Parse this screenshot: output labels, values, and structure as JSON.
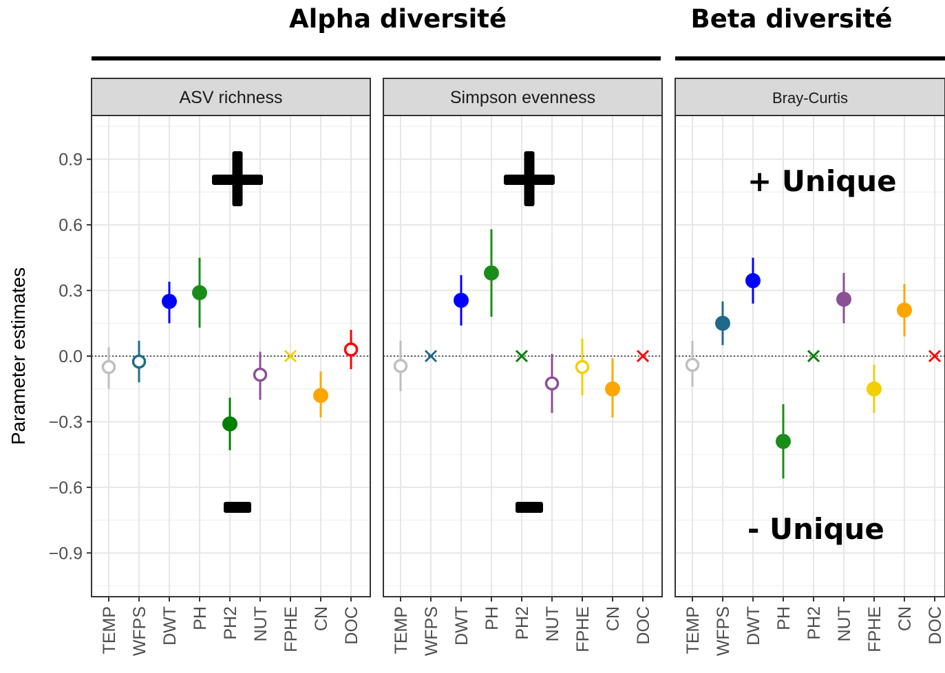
{
  "chart_data": {
    "type": "scatter",
    "ylabel": "Parameter estimates",
    "ylim": [
      -1.1,
      1.1
    ],
    "yticks": [
      "0.9",
      "0.6",
      "0.3",
      "0.0",
      "−0.3",
      "−0.6",
      "−0.9"
    ],
    "categories": [
      "TEMP",
      "WFPS",
      "DWT",
      "PH",
      "PH2",
      "NUT",
      "FPHE",
      "CN",
      "DOC"
    ],
    "category_colors": {
      "TEMP": "#bfbfbf",
      "WFPS": "#1f6a8a",
      "DWT": "#0000ff",
      "PH": "#1a8c1a",
      "PH2": "#008000",
      "NUT": "#8b4f96",
      "FPHE": "#f2d000",
      "CN": "#ffa500",
      "DOC": "#ff0000"
    },
    "group_titles": [
      {
        "label": "Alpha diversité",
        "panels": [
          0,
          1
        ]
      },
      {
        "label": "Beta diversité",
        "panels": [
          2
        ]
      }
    ],
    "panels": [
      {
        "strip": "ASV richness",
        "plus_symbol": "+",
        "minus_symbol": "−",
        "points": [
          {
            "cat": "TEMP",
            "y": -0.05,
            "lo": -0.15,
            "hi": 0.04,
            "marker": "open"
          },
          {
            "cat": "WFPS",
            "y": -0.025,
            "lo": -0.12,
            "hi": 0.07,
            "marker": "open"
          },
          {
            "cat": "DWT",
            "y": 0.25,
            "lo": 0.15,
            "hi": 0.34,
            "marker": "filled"
          },
          {
            "cat": "PH",
            "y": 0.29,
            "lo": 0.13,
            "hi": 0.45,
            "marker": "filled"
          },
          {
            "cat": "PH2",
            "y": -0.31,
            "lo": -0.43,
            "hi": -0.19,
            "marker": "filled"
          },
          {
            "cat": "NUT",
            "y": -0.085,
            "lo": -0.2,
            "hi": 0.02,
            "marker": "open"
          },
          {
            "cat": "FPHE",
            "y": 0.0,
            "marker": "cross"
          },
          {
            "cat": "CN",
            "y": -0.18,
            "lo": -0.28,
            "hi": -0.07,
            "marker": "filled"
          },
          {
            "cat": "DOC",
            "y": 0.03,
            "lo": -0.06,
            "hi": 0.12,
            "marker": "open"
          }
        ]
      },
      {
        "strip": "Simpson evenness",
        "plus_symbol": "+",
        "minus_symbol": "−",
        "points": [
          {
            "cat": "TEMP",
            "y": -0.045,
            "lo": -0.16,
            "hi": 0.07,
            "marker": "open"
          },
          {
            "cat": "WFPS",
            "y": 0.0,
            "marker": "cross"
          },
          {
            "cat": "DWT",
            "y": 0.255,
            "lo": 0.14,
            "hi": 0.37,
            "marker": "filled"
          },
          {
            "cat": "PH",
            "y": 0.38,
            "lo": 0.18,
            "hi": 0.58,
            "marker": "filled"
          },
          {
            "cat": "PH2",
            "y": 0.0,
            "marker": "cross"
          },
          {
            "cat": "NUT",
            "y": -0.125,
            "lo": -0.26,
            "hi": 0.01,
            "marker": "open"
          },
          {
            "cat": "FPHE",
            "y": -0.05,
            "lo": -0.18,
            "hi": 0.08,
            "marker": "open"
          },
          {
            "cat": "CN",
            "y": -0.15,
            "lo": -0.28,
            "hi": -0.01,
            "marker": "filled"
          },
          {
            "cat": "DOC",
            "y": 0.0,
            "marker": "cross"
          }
        ]
      },
      {
        "strip": "Bray-Curtis",
        "plus_label": "+ Unique",
        "minus_label": "- Unique",
        "points": [
          {
            "cat": "TEMP",
            "y": -0.04,
            "lo": -0.14,
            "hi": 0.07,
            "marker": "open"
          },
          {
            "cat": "WFPS",
            "y": 0.15,
            "lo": 0.05,
            "hi": 0.25,
            "marker": "filled"
          },
          {
            "cat": "DWT",
            "y": 0.345,
            "lo": 0.24,
            "hi": 0.45,
            "marker": "filled"
          },
          {
            "cat": "PH",
            "y": -0.39,
            "lo": -0.56,
            "hi": -0.22,
            "marker": "filled"
          },
          {
            "cat": "PH2",
            "y": 0.0,
            "marker": "cross"
          },
          {
            "cat": "NUT",
            "y": 0.26,
            "lo": 0.15,
            "hi": 0.38,
            "marker": "filled"
          },
          {
            "cat": "FPHE",
            "y": -0.15,
            "lo": -0.26,
            "hi": -0.04,
            "marker": "filled"
          },
          {
            "cat": "CN",
            "y": 0.21,
            "lo": 0.09,
            "hi": 0.33,
            "marker": "filled"
          },
          {
            "cat": "DOC",
            "y": 0.0,
            "marker": "cross"
          }
        ]
      }
    ]
  }
}
